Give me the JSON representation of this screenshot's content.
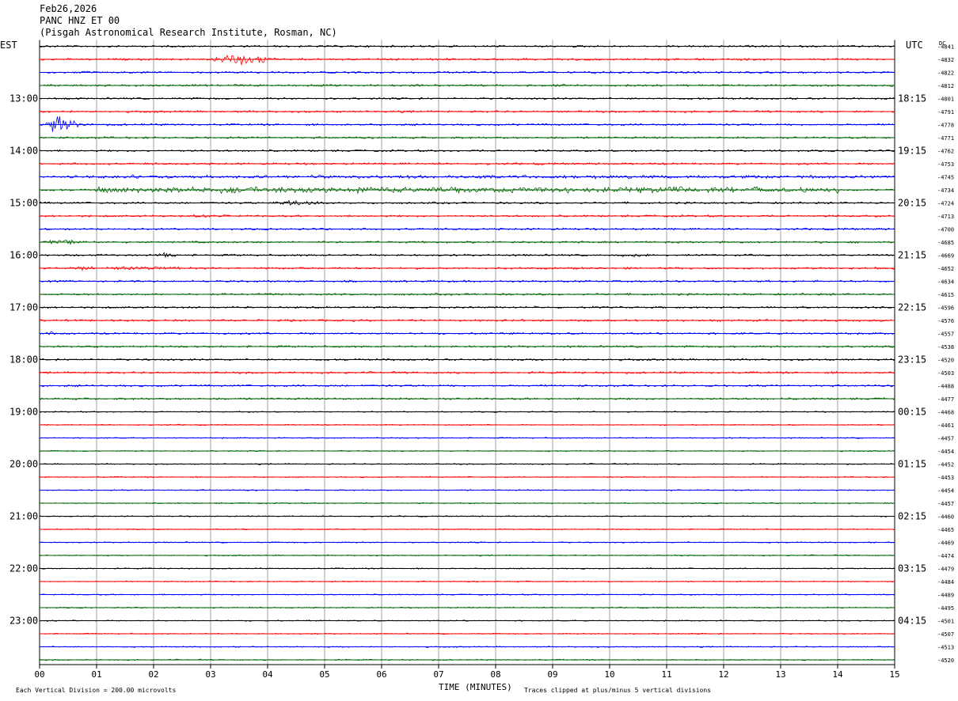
{
  "header": {
    "date": "Feb26,2026",
    "station": "PANC HNZ ET 00",
    "institute": "(Pisgah Astronomical Research Institute, Rosman, NC)"
  },
  "chart_data": {
    "type": "line",
    "title": "",
    "left_axis_label": "EST",
    "right_axis_label": "UTC",
    "dc_label": "DC",
    "xlabel": "TIME (MINUTES)",
    "x_ticks": [
      "00",
      "01",
      "02",
      "03",
      "04",
      "05",
      "06",
      "07",
      "08",
      "09",
      "10",
      "11",
      "12",
      "13",
      "14",
      "15"
    ],
    "xlim": [
      0,
      15
    ],
    "rows_per_hour": 4,
    "est_labels": [
      "13:00",
      "14:00",
      "15:00",
      "16:00",
      "17:00",
      "18:00",
      "19:00",
      "20:00",
      "21:00",
      "22:00",
      "23:00"
    ],
    "utc_labels": [
      "18:15",
      "19:15",
      "20:15",
      "21:15",
      "22:15",
      "23:15",
      "00:15",
      "01:15",
      "02:15",
      "03:15",
      "04:15"
    ],
    "first_labeled_row": 4,
    "trace_colors": [
      "#000000",
      "#ff0000",
      "#0000ff",
      "#006400"
    ],
    "grid_color": "#a0a0a0",
    "grid": true,
    "dc_offsets": [
      "-4841",
      "-4832",
      "-4822",
      "-4812",
      "-4801",
      "-4791",
      "-4778",
      "-4771",
      "-4762",
      "-4753",
      "-4745",
      "-4734",
      "-4724",
      "-4713",
      "-4700",
      "-4685",
      "-4669",
      "-4652",
      "-4634",
      "-4615",
      "-4596",
      "-4576",
      "-4557",
      "-4538",
      "-4520",
      "-4503",
      "-4488",
      "-4477",
      "-4468",
      "-4461",
      "-4457",
      "-4454",
      "-4452",
      "-4453",
      "-4454",
      "-4457",
      "-4460",
      "-4465",
      "-4469",
      "-4474",
      "-4479",
      "-4484",
      "-4489",
      "-4495",
      "-4501",
      "-4507",
      "-4513",
      "-4520"
    ],
    "events": [
      {
        "row": 1,
        "start_min": 2.9,
        "end_min": 4.5,
        "amplitude": 9
      },
      {
        "row": 6,
        "start_min": 0.0,
        "end_min": 0.9,
        "amplitude": 14
      },
      {
        "row": 10,
        "start_min": 0.4,
        "end_min": 15.0,
        "amplitude": 3
      },
      {
        "row": 11,
        "start_min": 1.0,
        "end_min": 14.0,
        "amplitude": 5
      },
      {
        "row": 12,
        "start_min": 3.9,
        "end_min": 5.5,
        "amplitude": 4
      },
      {
        "row": 13,
        "start_min": 2.5,
        "end_min": 3.3,
        "amplitude": 3
      },
      {
        "row": 15,
        "start_min": 0.0,
        "end_min": 1.0,
        "amplitude": 4
      },
      {
        "row": 16,
        "start_min": 2.0,
        "end_min": 2.6,
        "amplitude": 4
      },
      {
        "row": 16,
        "start_min": 10.0,
        "end_min": 11.0,
        "amplitude": 3
      },
      {
        "row": 17,
        "start_min": 0.5,
        "end_min": 2.6,
        "amplitude": 3
      },
      {
        "row": 22,
        "start_min": 0.0,
        "end_min": 0.6,
        "amplitude": 3
      }
    ],
    "footer_left": "Each Vertical Division =  200.00 microvolts",
    "footer_right": "Traces clipped at plus/minus 5 vertical divisions"
  }
}
